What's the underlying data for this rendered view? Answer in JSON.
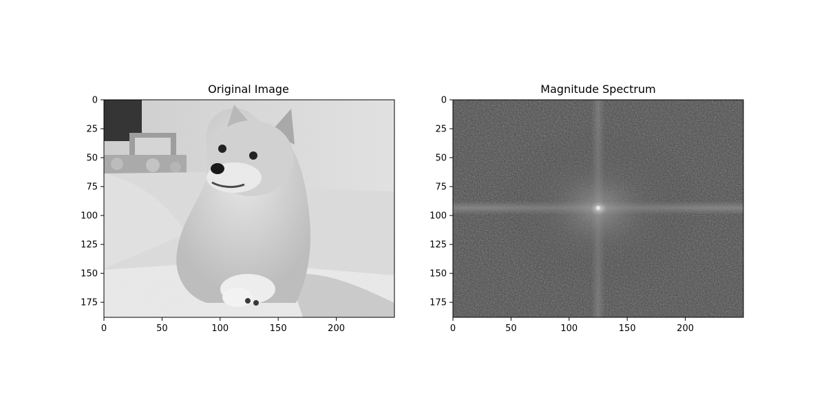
{
  "chart_data": [
    {
      "type": "image",
      "title": "Original Image",
      "xlim": [
        0,
        250
      ],
      "ylim": [
        188,
        0
      ],
      "xticks": [
        0,
        50,
        100,
        150,
        200
      ],
      "yticks": [
        0,
        25,
        50,
        75,
        100,
        125,
        150,
        175
      ],
      "colormap": "gray",
      "content": "grayscale photograph"
    },
    {
      "type": "image",
      "title": "Magnitude Spectrum",
      "xlim": [
        0,
        250
      ],
      "ylim": [
        188,
        0
      ],
      "xticks": [
        0,
        50,
        100,
        150,
        200
      ],
      "yticks": [
        0,
        25,
        50,
        75,
        100,
        125,
        150,
        175
      ],
      "colormap": "gray",
      "content": "centered log magnitude spectrum",
      "center": [
        125,
        94
      ]
    }
  ]
}
